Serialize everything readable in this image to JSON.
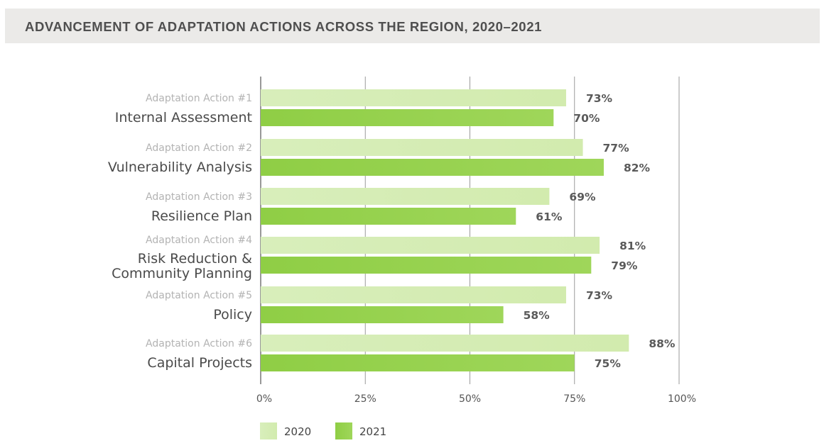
{
  "title": "ADVANCEMENT OF ADAPTATION ACTIONS ACROSS THE REGION, 2020–2021",
  "colors": {
    "series_2020": "#d2ebae",
    "series_2021": "#9fd65a",
    "gridline": "#9a9a9a",
    "title_bg": "#ebeae8"
  },
  "chart_data": {
    "type": "bar",
    "orientation": "horizontal",
    "title": "ADVANCEMENT OF ADAPTATION ACTIONS ACROSS THE REGION, 2020–2021",
    "categories": [
      {
        "sub": "Adaptation Action #1",
        "name": [
          "Internal Assessment"
        ]
      },
      {
        "sub": "Adaptation Action #2",
        "name": [
          "Vulnerability Analysis"
        ]
      },
      {
        "sub": "Adaptation Action #3",
        "name": [
          "Resilience Plan"
        ]
      },
      {
        "sub": "Adaptation Action #4",
        "name": [
          "Risk Reduction &",
          "Community Planning"
        ]
      },
      {
        "sub": "Adaptation Action #5",
        "name": [
          "Policy"
        ]
      },
      {
        "sub": "Adaptation Action #6",
        "name": [
          "Capital Projects"
        ]
      }
    ],
    "series": [
      {
        "name": "2020",
        "values": [
          73,
          77,
          69,
          81,
          73,
          88
        ],
        "labels": [
          "73%",
          "77%",
          "69%",
          "81%",
          "73%",
          "88%"
        ]
      },
      {
        "name": "2021",
        "values": [
          70,
          82,
          61,
          79,
          58,
          75
        ],
        "labels": [
          "70%",
          "82%",
          "61%",
          "79%",
          "58%",
          "75%"
        ]
      }
    ],
    "xlim": [
      0,
      100
    ],
    "xticks": [
      0,
      25,
      50,
      75,
      100
    ],
    "xtick_labels": [
      "0%",
      "25%",
      "50%",
      "75%",
      "100%"
    ],
    "grid": true,
    "legend": {
      "position": "bottom-left",
      "entries": [
        "2020",
        "2021"
      ]
    }
  }
}
